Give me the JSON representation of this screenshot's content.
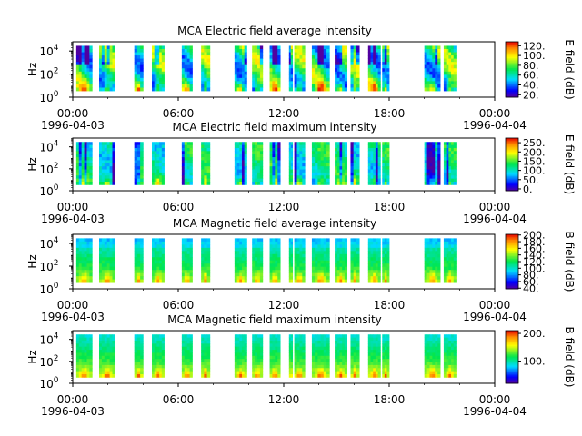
{
  "chart_data": [
    {
      "type": "heatmap",
      "title": "MCA  Electric field average intensity",
      "ylabel": "Hz",
      "y_scale": "log",
      "y_ticks": [
        {
          "base": "10",
          "exp": "0"
        },
        {
          "base": "10",
          "exp": "2"
        },
        {
          "base": "10",
          "exp": "4"
        }
      ],
      "x_ticks": [
        {
          "time": "00:00",
          "date": "1996-04-03"
        },
        {
          "time": "06:00",
          "date": ""
        },
        {
          "time": "12:00",
          "date": ""
        },
        {
          "time": "18:00",
          "date": ""
        },
        {
          "time": "00:00",
          "date": "1996-04-04"
        }
      ],
      "colorbar_label": "E field (dB)",
      "colorbar_ticks": [
        "20.",
        "40.",
        "60.",
        "80.",
        "100.",
        "120."
      ],
      "colorbar_range": [
        15,
        128
      ],
      "data_segments_hours": [
        [
          0.2,
          1.1
        ],
        [
          1.5,
          2.4
        ],
        [
          3.5,
          4.0
        ],
        [
          4.5,
          5.2
        ],
        [
          6.2,
          6.8
        ],
        [
          7.3,
          7.8
        ],
        [
          9.2,
          9.9
        ],
        [
          10.2,
          10.8
        ],
        [
          11.2,
          11.8
        ],
        [
          12.3,
          12.5
        ],
        [
          12.6,
          13.2
        ],
        [
          13.6,
          14.6
        ],
        [
          14.9,
          15.6
        ],
        [
          15.8,
          16.3
        ],
        [
          16.8,
          17.5
        ],
        [
          17.6,
          18.0
        ],
        [
          20.0,
          20.9
        ],
        [
          21.1,
          21.8
        ]
      ],
      "profile": "electric_avg"
    },
    {
      "type": "heatmap",
      "title": "MCA  Electric field maximum intensity",
      "ylabel": "Hz",
      "y_scale": "log",
      "y_ticks": [
        {
          "base": "10",
          "exp": "0"
        },
        {
          "base": "10",
          "exp": "2"
        },
        {
          "base": "10",
          "exp": "4"
        }
      ],
      "x_ticks": [
        {
          "time": "00:00",
          "date": "1996-04-03"
        },
        {
          "time": "06:00",
          "date": ""
        },
        {
          "time": "12:00",
          "date": ""
        },
        {
          "time": "18:00",
          "date": ""
        },
        {
          "time": "00:00",
          "date": "1996-04-04"
        }
      ],
      "colorbar_label": "E field (dB)",
      "colorbar_ticks": [
        "0.",
        "50.",
        "100.",
        "150.",
        "200.",
        "250."
      ],
      "colorbar_range": [
        -10,
        275
      ],
      "data_segments_hours": [
        [
          0.2,
          1.1
        ],
        [
          1.5,
          2.4
        ],
        [
          3.5,
          4.0
        ],
        [
          4.5,
          5.2
        ],
        [
          6.2,
          6.8
        ],
        [
          7.3,
          7.8
        ],
        [
          9.2,
          9.9
        ],
        [
          10.2,
          10.8
        ],
        [
          11.2,
          11.8
        ],
        [
          12.3,
          12.5
        ],
        [
          12.6,
          13.2
        ],
        [
          13.6,
          14.6
        ],
        [
          14.9,
          15.6
        ],
        [
          15.8,
          16.3
        ],
        [
          16.8,
          17.5
        ],
        [
          17.6,
          18.0
        ],
        [
          20.0,
          20.9
        ],
        [
          21.1,
          21.8
        ]
      ],
      "profile": "electric_max"
    },
    {
      "type": "heatmap",
      "title": "MCA  Magnetic field average intensity",
      "ylabel": "Hz",
      "y_scale": "log",
      "y_ticks": [
        {
          "base": "10",
          "exp": "0"
        },
        {
          "base": "10",
          "exp": "2"
        },
        {
          "base": "10",
          "exp": "4"
        }
      ],
      "x_ticks": [
        {
          "time": "00:00",
          "date": "1996-04-03"
        },
        {
          "time": "06:00",
          "date": ""
        },
        {
          "time": "12:00",
          "date": ""
        },
        {
          "time": "18:00",
          "date": ""
        },
        {
          "time": "00:00",
          "date": "1996-04-04"
        }
      ],
      "colorbar_label": "B field (dB)",
      "colorbar_ticks": [
        "40.",
        "60.",
        "80.",
        "100.",
        "120.",
        "140.",
        "160.",
        "180.",
        "200."
      ],
      "colorbar_range": [
        38,
        202
      ],
      "data_segments_hours": [
        [
          0.2,
          1.1
        ],
        [
          1.5,
          2.4
        ],
        [
          3.5,
          4.0
        ],
        [
          4.5,
          5.2
        ],
        [
          6.2,
          6.8
        ],
        [
          7.3,
          7.8
        ],
        [
          9.2,
          9.9
        ],
        [
          10.2,
          10.8
        ],
        [
          11.2,
          11.8
        ],
        [
          12.3,
          12.5
        ],
        [
          12.6,
          13.2
        ],
        [
          13.6,
          14.6
        ],
        [
          14.9,
          15.6
        ],
        [
          15.8,
          16.3
        ],
        [
          16.8,
          17.5
        ],
        [
          17.6,
          18.0
        ],
        [
          20.0,
          20.9
        ],
        [
          21.1,
          21.8
        ]
      ],
      "profile": "magnetic_avg"
    },
    {
      "type": "heatmap",
      "title": "MCA  Magnetic field maximum intensity",
      "ylabel": "Hz",
      "y_scale": "log",
      "y_ticks": [
        {
          "base": "10",
          "exp": "0"
        },
        {
          "base": "10",
          "exp": "2"
        },
        {
          "base": "10",
          "exp": "4"
        }
      ],
      "x_ticks": [
        {
          "time": "00:00",
          "date": "1996-04-03"
        },
        {
          "time": "06:00",
          "date": ""
        },
        {
          "time": "12:00",
          "date": ""
        },
        {
          "time": "18:00",
          "date": ""
        },
        {
          "time": "00:00",
          "date": "1996-04-04"
        }
      ],
      "colorbar_label": "B field (dB)",
      "colorbar_ticks": [
        "100.",
        "200."
      ],
      "colorbar_range": [
        20,
        210
      ],
      "data_segments_hours": [
        [
          0.2,
          1.1
        ],
        [
          1.5,
          2.4
        ],
        [
          3.5,
          4.0
        ],
        [
          4.5,
          5.2
        ],
        [
          6.2,
          6.8
        ],
        [
          7.3,
          7.8
        ],
        [
          9.2,
          9.9
        ],
        [
          10.2,
          10.8
        ],
        [
          11.2,
          11.8
        ],
        [
          12.3,
          12.5
        ],
        [
          12.6,
          13.2
        ],
        [
          13.6,
          14.6
        ],
        [
          14.9,
          15.6
        ],
        [
          15.8,
          16.3
        ],
        [
          16.8,
          17.5
        ],
        [
          17.6,
          18.0
        ],
        [
          20.0,
          20.9
        ],
        [
          21.1,
          21.8
        ]
      ],
      "profile": "magnetic_max"
    }
  ]
}
